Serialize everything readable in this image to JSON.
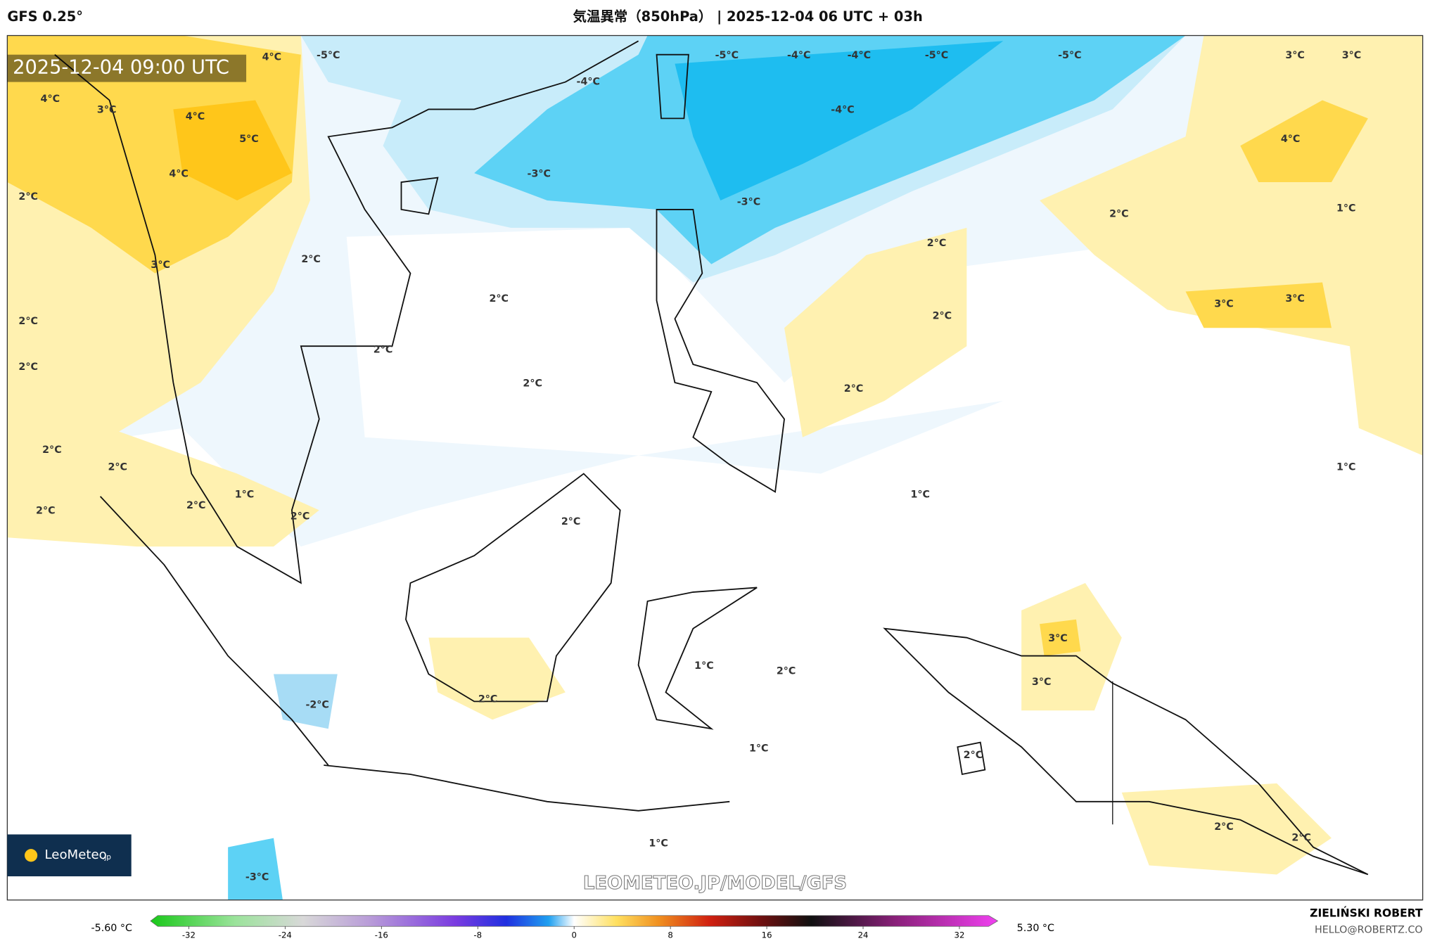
{
  "header": {
    "model": "GFS 0.25°",
    "title": "気温異常（850hPa） | 2025-12-04 06 UTC + 03h"
  },
  "map": {
    "timestamp": "2025-12-04 09:00 UTC",
    "watermark": "LEOMETEO.JP/MODEL/GFS",
    "logo": {
      "name": "LeoMeteo",
      "suffix": ".jp"
    },
    "contour_labels": [
      "-5°C",
      "-4°C",
      "-5°C",
      "-4°C",
      "-4°C",
      "-5°C",
      "-5°C",
      "-4°C",
      "-3°C",
      "-3°C",
      "3°C",
      "3°C",
      "4°C",
      "2°C",
      "1°C",
      "4°C",
      "4°C",
      "3°C",
      "4°C",
      "5°C",
      "4°C",
      "2°C",
      "2°C",
      "2°C",
      "3°C",
      "2°C",
      "3°C",
      "3°C",
      "2°C",
      "2°C",
      "2°C",
      "2°C",
      "2°C",
      "2°C",
      "2°C",
      "2°C",
      "1°C",
      "1°C",
      "1°C",
      "2°C",
      "2°C",
      "2°C",
      "2°C",
      "3°C",
      "1°C",
      "2°C",
      "3°C",
      "2°C",
      "-2°C",
      "1°C",
      "2°C",
      "2°C",
      "2°C",
      "1°C",
      "-3°C"
    ]
  },
  "colorbar": {
    "min_label": "-5.60 °C",
    "max_label": "5.30 °C",
    "ticks": [
      -32,
      -24,
      -16,
      -8,
      0,
      8,
      16,
      24,
      32
    ]
  },
  "credit": {
    "author": "ZIELIŃSKI ROBERT",
    "email": "HELLO@ROBERTZ.CO"
  }
}
